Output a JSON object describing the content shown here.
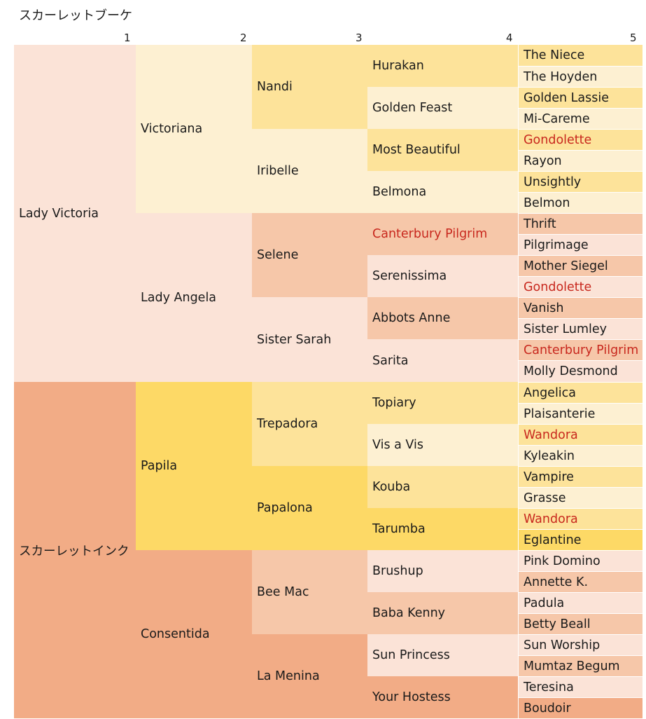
{
  "title": "スカーレットブーケ",
  "generation_labels": [
    "1",
    "2",
    "3",
    "4",
    "5"
  ],
  "colors": {
    "red_text": "#c8281e",
    "lady_victoria_line": [
      "#fbe3d7",
      "#fdf0d2",
      "#fde39a",
      "#f6c7a9"
    ],
    "scarlet_ink_line": [
      "#f2ac86",
      "#fdd966"
    ]
  },
  "pedigree": [
    {
      "name": "Lady Victoria",
      "gen": 1,
      "fill": "#fbe3d7"
    },
    {
      "name": "Victoriana",
      "gen": 2,
      "fill": "#fdf0d2"
    },
    {
      "name": "Nandi",
      "gen": 3,
      "fill": "#fde39a"
    },
    {
      "name": "Hurakan",
      "gen": 4,
      "fill": "#fde39a"
    },
    {
      "name": "The Niece",
      "gen": 5,
      "fill": "#fde39a"
    },
    {
      "name": "The Hoyden",
      "gen": 5,
      "fill": "#fdf0d2"
    },
    {
      "name": "Golden Feast",
      "gen": 4,
      "fill": "#fdf0d2"
    },
    {
      "name": "Golden Lassie",
      "gen": 5,
      "fill": "#fde39a"
    },
    {
      "name": "Mi-Careme",
      "gen": 5,
      "fill": "#fdf0d2"
    },
    {
      "name": "Iribelle",
      "gen": 3,
      "fill": "#fdf0d2"
    },
    {
      "name": "Most Beautiful",
      "gen": 4,
      "fill": "#fde39a"
    },
    {
      "name": "Gondolette",
      "gen": 5,
      "fill": "#fde39a",
      "red": true
    },
    {
      "name": "Rayon",
      "gen": 5,
      "fill": "#fdf0d2"
    },
    {
      "name": "Belmona",
      "gen": 4,
      "fill": "#fdf0d2"
    },
    {
      "name": "Unsightly",
      "gen": 5,
      "fill": "#fde39a"
    },
    {
      "name": "Belmon",
      "gen": 5,
      "fill": "#fdf0d2"
    },
    {
      "name": "Lady Angela",
      "gen": 2,
      "fill": "#fbe3d7"
    },
    {
      "name": "Selene",
      "gen": 3,
      "fill": "#f6c7a9"
    },
    {
      "name": "Canterbury Pilgrim",
      "gen": 4,
      "fill": "#f6c7a9",
      "red": true
    },
    {
      "name": "Thrift",
      "gen": 5,
      "fill": "#f6c7a9"
    },
    {
      "name": "Pilgrimage",
      "gen": 5,
      "fill": "#fbe3d7"
    },
    {
      "name": "Serenissima",
      "gen": 4,
      "fill": "#fbe3d7"
    },
    {
      "name": "Mother Siegel",
      "gen": 5,
      "fill": "#f6c7a9"
    },
    {
      "name": "Gondolette",
      "gen": 5,
      "fill": "#fbe3d7",
      "red": true
    },
    {
      "name": "Sister Sarah",
      "gen": 3,
      "fill": "#fbe3d7"
    },
    {
      "name": "Abbots Anne",
      "gen": 4,
      "fill": "#f6c7a9"
    },
    {
      "name": "Vanish",
      "gen": 5,
      "fill": "#f6c7a9"
    },
    {
      "name": "Sister Lumley",
      "gen": 5,
      "fill": "#fbe3d7"
    },
    {
      "name": "Sarita",
      "gen": 4,
      "fill": "#fbe3d7"
    },
    {
      "name": "Canterbury Pilgrim",
      "gen": 5,
      "fill": "#f6c7a9",
      "red": true
    },
    {
      "name": "Molly Desmond",
      "gen": 5,
      "fill": "#fbe3d7"
    },
    {
      "name": "スカーレットインク",
      "gen": 1,
      "fill": "#f2ac86"
    },
    {
      "name": "Papila",
      "gen": 2,
      "fill": "#fdd966"
    },
    {
      "name": "Trepadora",
      "gen": 3,
      "fill": "#fde39a"
    },
    {
      "name": "Topiary",
      "gen": 4,
      "fill": "#fde39a"
    },
    {
      "name": "Angelica",
      "gen": 5,
      "fill": "#fde39a"
    },
    {
      "name": "Plaisanterie",
      "gen": 5,
      "fill": "#fdf0d2"
    },
    {
      "name": "Vis a Vis",
      "gen": 4,
      "fill": "#fdf0d2"
    },
    {
      "name": "Wandora",
      "gen": 5,
      "fill": "#fde39a",
      "red": true
    },
    {
      "name": "Kyleakin",
      "gen": 5,
      "fill": "#fdf0d2"
    },
    {
      "name": "Papalona",
      "gen": 3,
      "fill": "#fdd966"
    },
    {
      "name": "Kouba",
      "gen": 4,
      "fill": "#fde39a"
    },
    {
      "name": "Vampire",
      "gen": 5,
      "fill": "#fde39a"
    },
    {
      "name": "Grasse",
      "gen": 5,
      "fill": "#fdf0d2"
    },
    {
      "name": "Tarumba",
      "gen": 4,
      "fill": "#fdd966"
    },
    {
      "name": "Wandora",
      "gen": 5,
      "fill": "#fde39a",
      "red": true
    },
    {
      "name": "Eglantine",
      "gen": 5,
      "fill": "#fdd966"
    },
    {
      "name": "Consentida",
      "gen": 2,
      "fill": "#f2ac86"
    },
    {
      "name": "Bee Mac",
      "gen": 3,
      "fill": "#f6c7a9"
    },
    {
      "name": "Brushup",
      "gen": 4,
      "fill": "#fbe3d7"
    },
    {
      "name": "Pink Domino",
      "gen": 5,
      "fill": "#fbe3d7"
    },
    {
      "name": "Annette K.",
      "gen": 5,
      "fill": "#f6c7a9"
    },
    {
      "name": "Baba Kenny",
      "gen": 4,
      "fill": "#f6c7a9"
    },
    {
      "name": "Padula",
      "gen": 5,
      "fill": "#fbe3d7"
    },
    {
      "name": "Betty Beall",
      "gen": 5,
      "fill": "#f6c7a9"
    },
    {
      "name": "La Menina",
      "gen": 3,
      "fill": "#f2ac86"
    },
    {
      "name": "Sun Princess",
      "gen": 4,
      "fill": "#fbe3d7"
    },
    {
      "name": "Sun Worship",
      "gen": 5,
      "fill": "#fbe3d7"
    },
    {
      "name": "Mumtaz Begum",
      "gen": 5,
      "fill": "#f6c7a9"
    },
    {
      "name": "Your Hostess",
      "gen": 4,
      "fill": "#f2ac86"
    },
    {
      "name": "Teresina",
      "gen": 5,
      "fill": "#fbe3d7"
    },
    {
      "name": "Boudoir",
      "gen": 5,
      "fill": "#f2ac86"
    }
  ]
}
